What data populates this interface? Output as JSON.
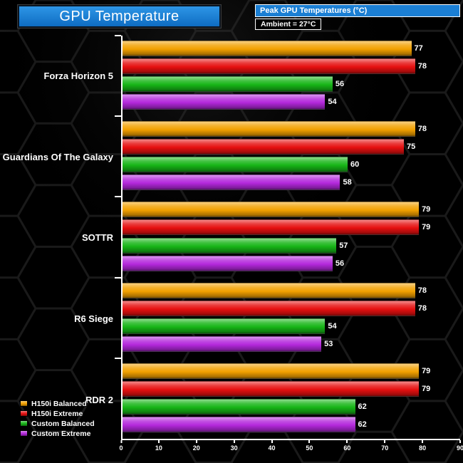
{
  "header": {
    "title": "GPU Temperature",
    "subtitle": "Peak GPU Temperatures (°C)",
    "ambient": "Ambient = 27°C"
  },
  "chart_data": {
    "type": "bar",
    "orientation": "horizontal",
    "title": "GPU Temperature",
    "subtitle": "Peak GPU Temperatures (°C)",
    "annotation": "Ambient = 27°C",
    "categories": [
      "Forza Horizon 5",
      "Guardians Of The Galaxy",
      "SOTTR",
      "R6 Siege",
      "RDR 2"
    ],
    "series": [
      {
        "name": "H150i Balanced",
        "color": "#f2a000",
        "values": [
          77,
          78,
          79,
          78,
          79
        ]
      },
      {
        "name": "H150i Extreme",
        "color": "#e61010",
        "values": [
          78,
          75,
          79,
          78,
          79
        ]
      },
      {
        "name": "Custom Balanced",
        "color": "#17b517",
        "values": [
          56,
          60,
          57,
          54,
          62
        ]
      },
      {
        "name": "Custom Extreme",
        "color": "#b428dc",
        "values": [
          54,
          58,
          56,
          53,
          62
        ]
      }
    ],
    "xlim": [
      0,
      90
    ],
    "xticks": [
      0,
      10,
      20,
      30,
      40,
      50,
      60,
      70,
      80,
      90
    ],
    "legend_position": "bottom-left",
    "grid": false,
    "accent_blue": "#1b7fd4"
  }
}
